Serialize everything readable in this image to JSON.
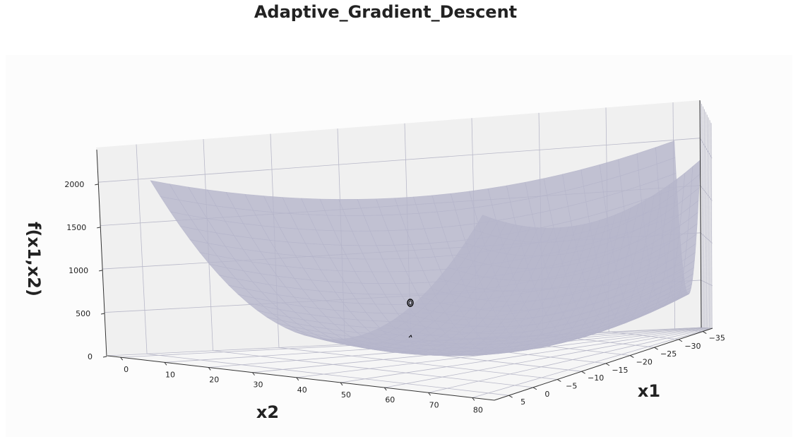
{
  "chart_data": {
    "type": "surface",
    "title": "Adaptive_Gradient_Descent",
    "xlabel": "x1",
    "ylabel": "x2",
    "zlabel": "f(x1,x2)",
    "x1_ticks": [
      5,
      0,
      -5,
      -10,
      -15,
      -20,
      -25,
      -30,
      -35
    ],
    "x1_tick_labels": [
      "5",
      "0",
      "−5",
      "−10",
      "−15",
      "−20",
      "−25",
      "−30",
      "−35"
    ],
    "x2_ticks": [
      0,
      10,
      20,
      30,
      40,
      50,
      60,
      70,
      80
    ],
    "x2_tick_labels": [
      "0",
      "10",
      "20",
      "30",
      "40",
      "50",
      "60",
      "70",
      "80"
    ],
    "z_ticks": [
      0,
      500,
      1000,
      1500,
      2000
    ],
    "z_tick_labels": [
      "0",
      "500",
      "1000",
      "1500",
      "2000"
    ],
    "x1_range": [
      -37,
      8
    ],
    "x2_range": [
      -3,
      85
    ],
    "zlim": [
      0,
      2400
    ],
    "surface": {
      "x1_range": [
        -35,
        5
      ],
      "x2_range": [
        0,
        80
      ],
      "center": [
        -15,
        40
      ],
      "curvature": [
        1,
        1
      ],
      "color": "#b5b5cb",
      "opacity": 0.8
    },
    "optimizer_path": {
      "color": "#000000",
      "points": [
        [
          -15,
          42,
          0
        ],
        [
          -15,
          42,
          0
        ]
      ]
    },
    "grid": true,
    "pane_color": "#f2f2f2"
  }
}
